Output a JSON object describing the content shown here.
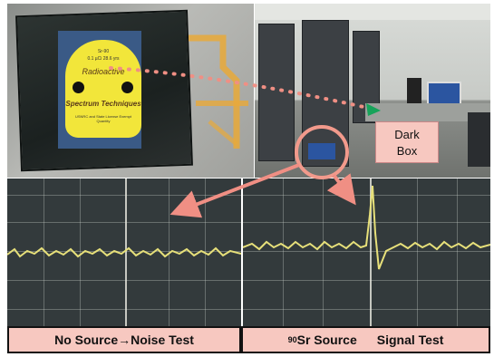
{
  "dark_box_label": [
    "Dark",
    "Box"
  ],
  "caption_left": {
    "part1": "No Source",
    "arrow": "→",
    "part2": " Noise Test"
  },
  "caption_right": {
    "isotope_mass": "90",
    "part1": "Sr Source",
    "part2": "Signal Test"
  },
  "sticker": {
    "line1": "Sr-90",
    "line2": "0.1 µCi  28.6 yrs",
    "line3": "Radioactive",
    "line4": "Spectrum Techniques",
    "line5": "USNRC and State License Exempt Quantity"
  },
  "colors": {
    "caption_bg": "#f7c8c0",
    "sticker_yellow": "#f2e63a",
    "trace": "#e7e07a",
    "highlight_circle": "#f29a8c",
    "arrow": "#f08f84"
  }
}
